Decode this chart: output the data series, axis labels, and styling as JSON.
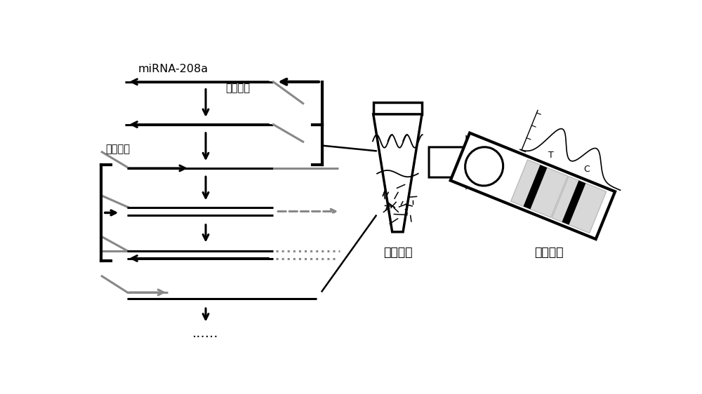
{
  "bg_color": "#ffffff",
  "black": "#000000",
  "gray": "#888888",
  "title_text": "miRNA-208a",
  "downstream_label": "下游引物",
  "upstream_label": "上游引物",
  "isothermal_label": "等温扩增",
  "fluorescence_label": "荧光检测",
  "dots_label": "......",
  "lw": 2.2,
  "lw_thin": 1.4
}
